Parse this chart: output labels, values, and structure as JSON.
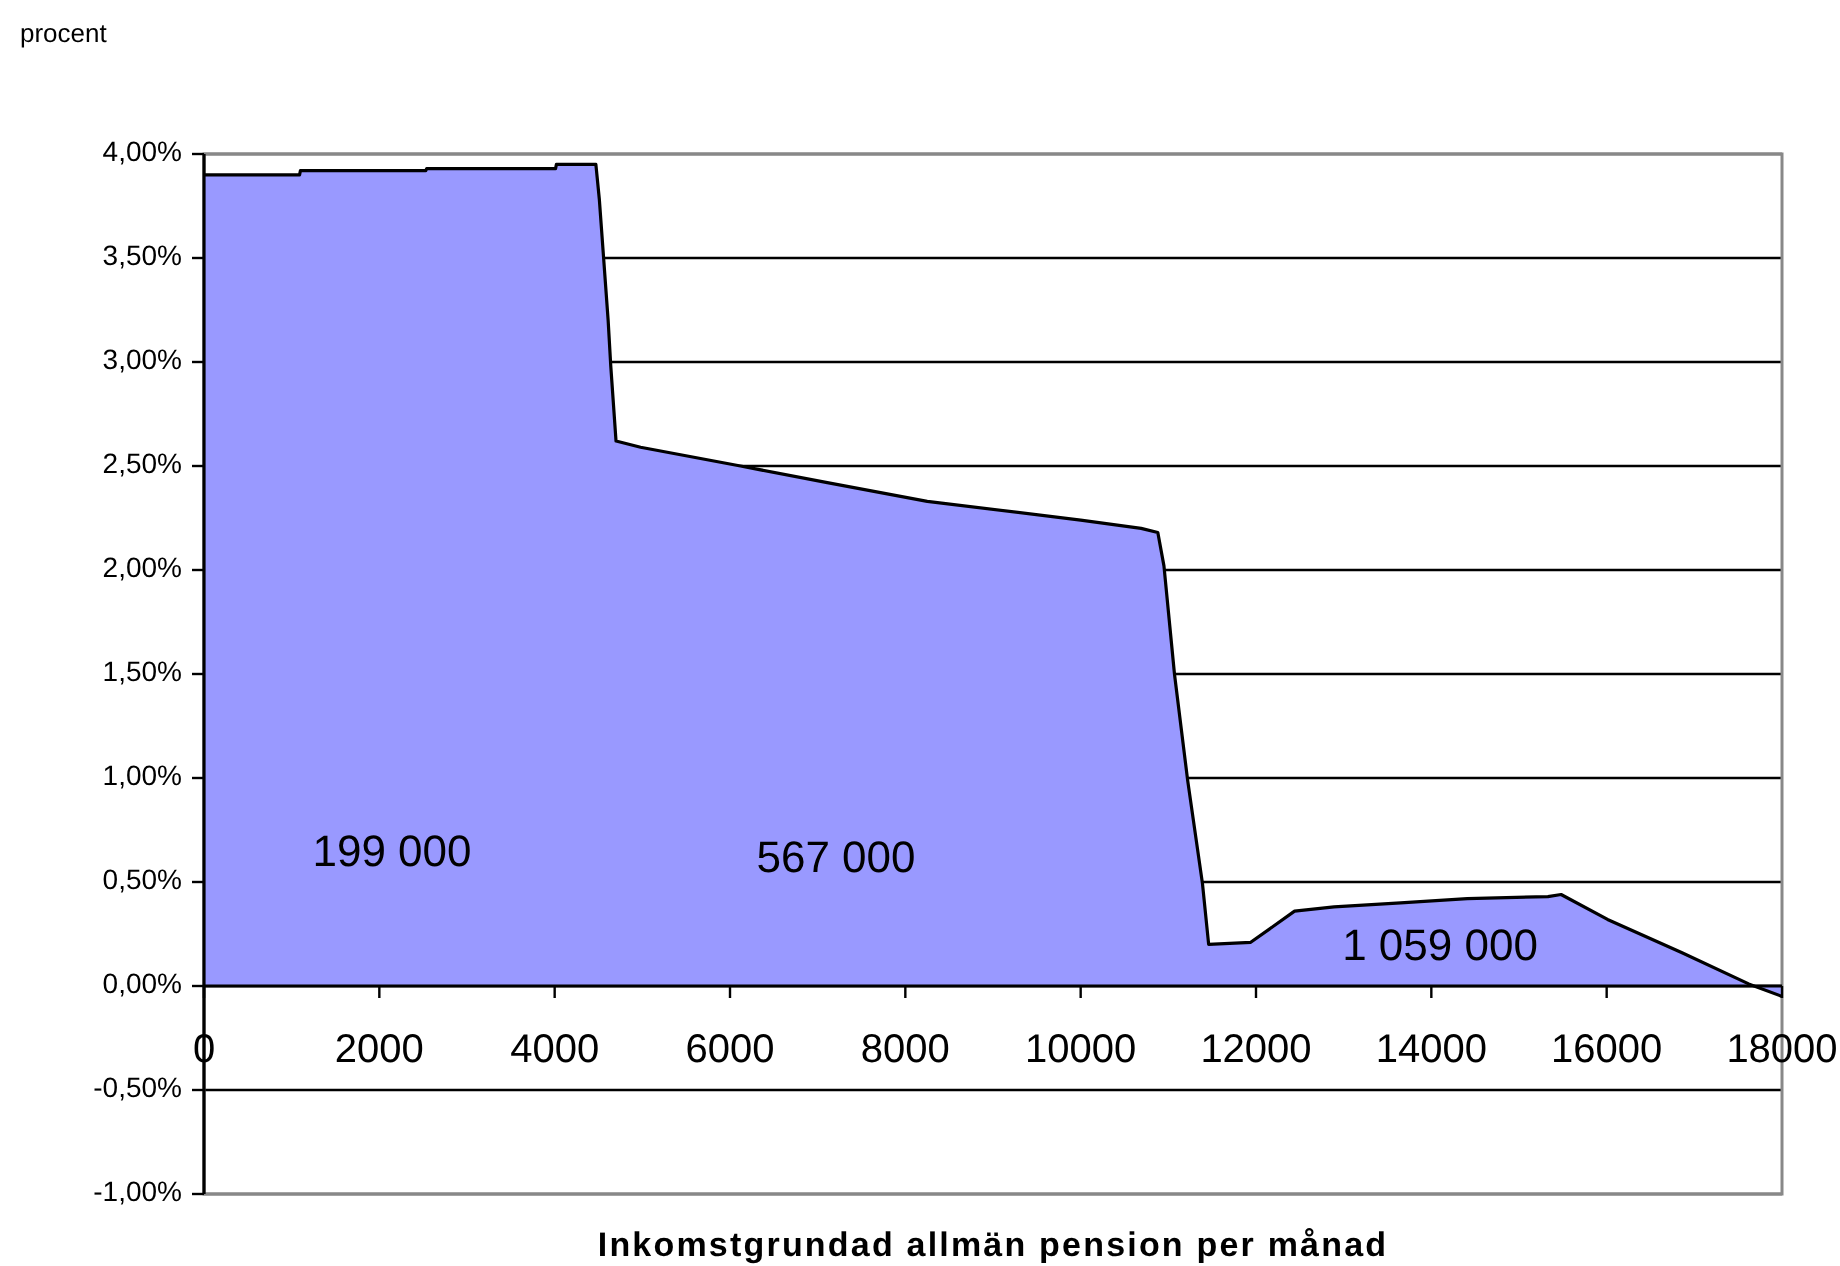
{
  "chart_data": {
    "type": "area",
    "ylabel": "procent",
    "xlabel": "Inkomstgrundad allmän pension per månad",
    "x": [
      0,
      1090,
      1100,
      2530,
      2540,
      4010,
      4020,
      4470,
      4510,
      4560,
      4610,
      4640,
      4700,
      4980,
      6120,
      7110,
      8250,
      10000,
      10690,
      10880,
      10950,
      11070,
      11220,
      11390,
      11460,
      11940,
      12440,
      12890,
      13650,
      14410,
      15330,
      15480,
      16010,
      16860,
      17620,
      18000
    ],
    "values": [
      3.9,
      3.9,
      3.92,
      3.92,
      3.93,
      3.93,
      3.95,
      3.95,
      3.78,
      3.49,
      3.2,
      2.98,
      2.62,
      2.59,
      2.5,
      2.42,
      2.33,
      2.24,
      2.2,
      2.18,
      2.02,
      1.5,
      0.99,
      0.49,
      0.2,
      0.21,
      0.36,
      0.38,
      0.4,
      0.42,
      0.43,
      0.44,
      0.32,
      0.16,
      0.01,
      -0.05
    ],
    "color": "#9999ff",
    "xlim": [
      0,
      18000
    ],
    "xticks": [
      0,
      2000,
      4000,
      6000,
      8000,
      10000,
      12000,
      14000,
      16000,
      18000
    ],
    "ylim": [
      -1,
      4
    ],
    "yticks": [
      {
        "value": -1,
        "label": "-1,00%"
      },
      {
        "value": -0.5,
        "label": "-0,50%"
      },
      {
        "value": 0,
        "label": "0,00%"
      },
      {
        "value": 0.5,
        "label": "0,50%"
      },
      {
        "value": 1,
        "label": "1,00%"
      },
      {
        "value": 1.5,
        "label": "1,50%"
      },
      {
        "value": 2,
        "label": "2,00%"
      },
      {
        "value": 2.5,
        "label": "2,50%"
      },
      {
        "value": 3,
        "label": "3,00%"
      },
      {
        "value": 3.5,
        "label": "3,50%"
      },
      {
        "value": 4,
        "label": "4,00%"
      }
    ],
    "grid": "y",
    "annotations": [
      "199 000",
      "567 000",
      "1 059 000"
    ]
  }
}
